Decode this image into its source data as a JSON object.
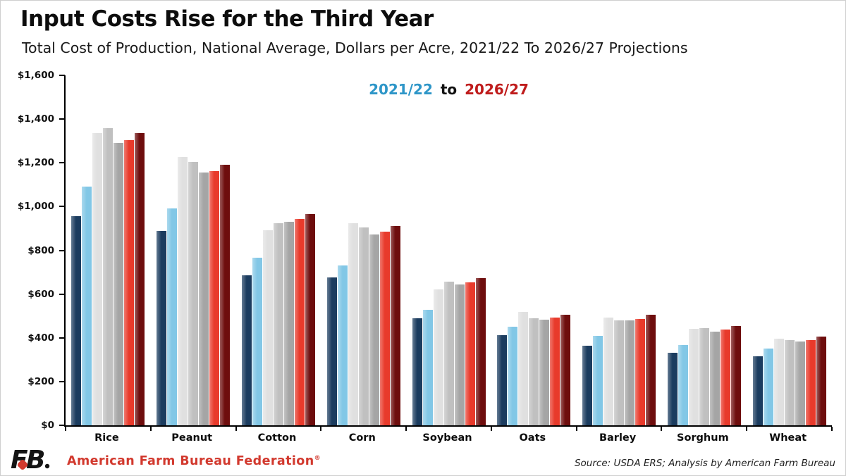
{
  "footer": {
    "org_name": "American Farm Bureau Federation",
    "reg_mark": "®",
    "org_color": "#d2392e",
    "logo": "afbf-fb-monogram",
    "source_note": "Source: USDA ERS; Analysis by American Farm Bureau"
  },
  "chart_data": {
    "type": "bar",
    "title": "Input Costs Rise for the Third Year",
    "subtitle": "Total Cost of Production, National Average, Dollars per Acre, 2021/22 To 2026/27 Projections",
    "legend": {
      "start_label": "2021/22",
      "connector": "to",
      "end_label": "2026/27",
      "start_color": "#2e96c8",
      "connector_color": "#111111",
      "end_color": "#bf1c1c",
      "position": "top-center"
    },
    "categories": [
      "Rice",
      "Peanut",
      "Cotton",
      "Corn",
      "Soybean",
      "Oats",
      "Barley",
      "Sorghum",
      "Wheat"
    ],
    "series": [
      {
        "name": "navy",
        "color": "#1b3c5f",
        "values": [
          955,
          890,
          685,
          675,
          488,
          413,
          365,
          332,
          316
        ]
      },
      {
        "name": "light-blue",
        "color": "#82c7e6",
        "values": [
          1090,
          990,
          765,
          730,
          528,
          452,
          408,
          368,
          350
        ]
      },
      {
        "name": "light-gray",
        "color": "#e0e0e0",
        "values": [
          1335,
          1228,
          893,
          923,
          620,
          518,
          492,
          441,
          397
        ]
      },
      {
        "name": "medium-gray",
        "color": "#c0c0c0",
        "values": [
          1360,
          1205,
          924,
          904,
          656,
          489,
          481,
          444,
          391
        ]
      },
      {
        "name": "dark-gray",
        "color": "#a5a5a5",
        "values": [
          1290,
          1155,
          930,
          874,
          644,
          484,
          481,
          429,
          384
        ]
      },
      {
        "name": "red",
        "color": "#e83a2b",
        "values": [
          1305,
          1163,
          944,
          886,
          654,
          491,
          487,
          437,
          391
        ]
      },
      {
        "name": "dark-red",
        "color": "#6e0d0d",
        "values": [
          1335,
          1192,
          966,
          911,
          673,
          507,
          505,
          455,
          405
        ]
      }
    ],
    "ylim": [
      0,
      1600
    ],
    "ytick_step": 200,
    "ytick_labels": [
      "$0",
      "$200",
      "$400",
      "$600",
      "$800",
      "$1,000",
      "$1,200",
      "$1,400",
      "$1,600"
    ],
    "grid": false
  }
}
